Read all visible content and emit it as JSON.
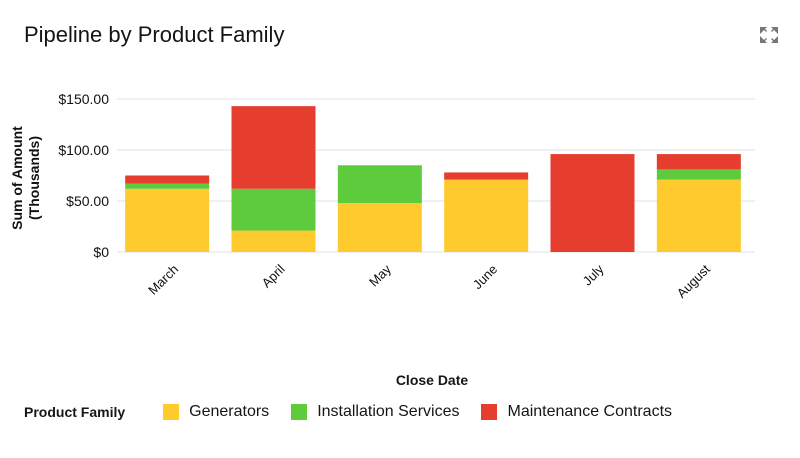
{
  "header": {
    "title": "Pipeline by Product Family",
    "expand_icon": "expand-icon"
  },
  "legend": {
    "title": "Product Family"
  },
  "chart_data": {
    "type": "bar",
    "stacked": true,
    "title": "Pipeline by Product Family",
    "xlabel": "Close Date",
    "ylabel": "Sum of Amount",
    "ylabel_sub": "(Thousands)",
    "categories": [
      "March",
      "April",
      "May",
      "June",
      "July",
      "August"
    ],
    "yticks": [
      0,
      50,
      100,
      150
    ],
    "ytick_labels": [
      "$0",
      "$50.00",
      "$100.00",
      "$150.00"
    ],
    "ylim": [
      0,
      150
    ],
    "grid": true,
    "legend_position": "bottom-left",
    "series": [
      {
        "name": "Generators",
        "color": "#FFCA2E",
        "values": [
          62,
          21,
          48,
          71,
          0,
          71
        ]
      },
      {
        "name": "Installation Services",
        "color": "#5ECB3C",
        "values": [
          5,
          41,
          37,
          0,
          0,
          10
        ]
      },
      {
        "name": "Maintenance Contracts",
        "color": "#E53E2F",
        "values": [
          8,
          81,
          0,
          7,
          96,
          15
        ]
      }
    ]
  }
}
